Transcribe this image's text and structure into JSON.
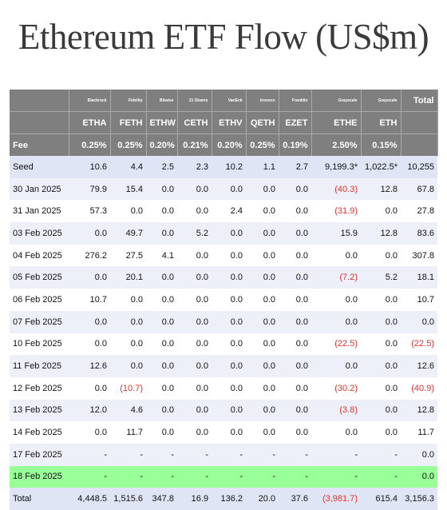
{
  "title": "Ethereum ETF Flow (US$m)",
  "issuers": [
    "Blackrock",
    "Fidelity",
    "Bitwise",
    "21 Shares",
    "VanEck",
    "Invesco",
    "Franklin",
    "Grayscale",
    "Grayscale"
  ],
  "total_label": "Total",
  "tickers": [
    "ETHA",
    "FETH",
    "ETHW",
    "CETH",
    "ETHV",
    "QETH",
    "EZET",
    "ETHE",
    "ETH"
  ],
  "fee_label": "Fee",
  "fees": [
    "0.25%",
    "0.25%",
    "0.20%",
    "0.21%",
    "0.20%",
    "0.25%",
    "0.19%",
    "2.50%",
    "0.15%"
  ],
  "rows": [
    {
      "date": "Seed",
      "cells": [
        "10.6",
        "4.4",
        "2.5",
        "2.3",
        "10.2",
        "1.1",
        "2.7",
        "9,199.3*",
        "1,022.5*",
        "10,255"
      ]
    },
    {
      "date": "30 Jan 2025",
      "cells": [
        "79.9",
        "15.4",
        "0.0",
        "0.0",
        "0.0",
        "0.0",
        "0.0",
        "(40.3)",
        "12.8",
        "67.8"
      ]
    },
    {
      "date": "31 Jan 2025",
      "cells": [
        "57.3",
        "0.0",
        "0.0",
        "0.0",
        "2.4",
        "0.0",
        "0.0",
        "(31.9)",
        "0.0",
        "27.8"
      ]
    },
    {
      "date": "03 Feb 2025",
      "cells": [
        "0.0",
        "49.7",
        "0.0",
        "5.2",
        "0.0",
        "0.0",
        "0.0",
        "15.9",
        "12.8",
        "83.6"
      ]
    },
    {
      "date": "04 Feb 2025",
      "cells": [
        "276.2",
        "27.5",
        "4.1",
        "0.0",
        "0.0",
        "0.0",
        "0.0",
        "0.0",
        "0.0",
        "307.8"
      ]
    },
    {
      "date": "05 Feb 2025",
      "cells": [
        "0.0",
        "20.1",
        "0.0",
        "0.0",
        "0.0",
        "0.0",
        "0.0",
        "(7.2)",
        "5.2",
        "18.1"
      ]
    },
    {
      "date": "06 Feb 2025",
      "cells": [
        "10.7",
        "0.0",
        "0.0",
        "0.0",
        "0.0",
        "0.0",
        "0.0",
        "0.0",
        "0.0",
        "10.7"
      ]
    },
    {
      "date": "07 Feb 2025",
      "cells": [
        "0.0",
        "0.0",
        "0.0",
        "0.0",
        "0.0",
        "0.0",
        "0.0",
        "0.0",
        "0.0",
        "0.0"
      ]
    },
    {
      "date": "10 Feb 2025",
      "cells": [
        "0.0",
        "0.0",
        "0.0",
        "0.0",
        "0.0",
        "0.0",
        "0.0",
        "(22.5)",
        "0.0",
        "(22.5)"
      ]
    },
    {
      "date": "11 Feb 2025",
      "cells": [
        "12.6",
        "0.0",
        "0.0",
        "0.0",
        "0.0",
        "0.0",
        "0.0",
        "0.0",
        "0.0",
        "12.6"
      ]
    },
    {
      "date": "12 Feb 2025",
      "cells": [
        "0.0",
        "(10.7)",
        "0.0",
        "0.0",
        "0.0",
        "0.0",
        "0.0",
        "(30.2)",
        "0.0",
        "(40.9)"
      ]
    },
    {
      "date": "13 Feb 2025",
      "cells": [
        "12.0",
        "4.6",
        "0.0",
        "0.0",
        "0.0",
        "0.0",
        "0.0",
        "(3.8)",
        "0.0",
        "12.8"
      ]
    },
    {
      "date": "14 Feb 2025",
      "cells": [
        "0.0",
        "11.7",
        "0.0",
        "0.0",
        "0.0",
        "0.0",
        "0.0",
        "0.0",
        "0.0",
        "11.7"
      ]
    },
    {
      "date": "17 Feb 2025",
      "cells": [
        "-",
        "-",
        "-",
        "-",
        "-",
        "-",
        "-",
        "-",
        "-",
        "0.0"
      ]
    },
    {
      "date": "18 Feb 2025",
      "cells": [
        "-",
        "-",
        "-",
        "-",
        "-",
        "-",
        "-",
        "-",
        "-",
        "0.0"
      ]
    },
    {
      "date": "Total",
      "cells": [
        "4,448.5",
        "1,515.6",
        "347.8",
        "16.9",
        "136.2",
        "20.0",
        "37.6",
        "(3,981.7)",
        "615.4",
        "3,156.3"
      ]
    }
  ],
  "colors": {
    "header_bg": "#7f7f7f",
    "row_alt": "#edf0f9",
    "highlight": "#99ff99",
    "negative": "#e8302c"
  }
}
